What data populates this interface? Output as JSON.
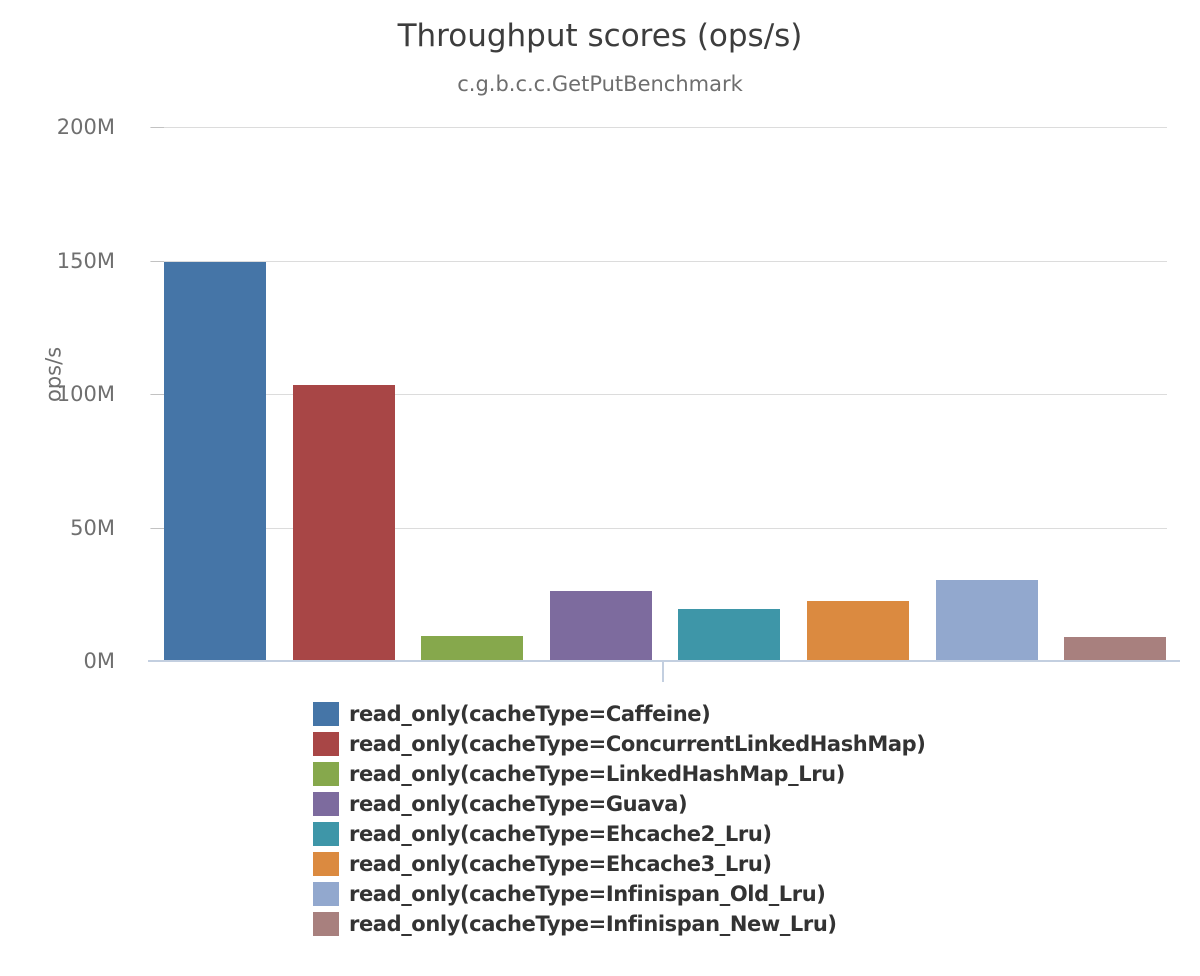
{
  "header": {
    "title": "Throughput scores (ops/s)",
    "subtitle": "c.g.b.c.c.GetPutBenchmark"
  },
  "y_axis": {
    "label": "ops/s",
    "tick_labels": [
      "200M",
      "150M",
      "100M",
      "50M",
      "0M"
    ]
  },
  "palette": {
    "gridline": "#dcdcdc",
    "tick_dash": "#c2c2c2",
    "axis_line": "#c3cfe0",
    "title_text": "#3d3d3d",
    "muted_text": "#6e6e6e",
    "legend_text": "#333333"
  },
  "chart_data": {
    "type": "bar",
    "title": "Throughput scores (ops/s)",
    "subtitle": "c.g.b.c.c.GetPutBenchmark",
    "xlabel": "",
    "ylabel": "ops/s",
    "ylim_millions": [
      0,
      200
    ],
    "y_tick_step_millions": 50,
    "grid": true,
    "legend_position": "bottom",
    "series": [
      {
        "name": "read_only(cacheType=Caffeine)",
        "value_millions": 149,
        "color": "#4575a7"
      },
      {
        "name": "read_only(cacheType=ConcurrentLinkedHashMap)",
        "value_millions": 103,
        "color": "#a84646"
      },
      {
        "name": "read_only(cacheType=LinkedHashMap_Lru)",
        "value_millions": 9,
        "color": "#86a84c"
      },
      {
        "name": "read_only(cacheType=Guava)",
        "value_millions": 26,
        "color": "#7d6b9e"
      },
      {
        "name": "read_only(cacheType=Ehcache2_Lru)",
        "value_millions": 19,
        "color": "#3e96a8"
      },
      {
        "name": "read_only(cacheType=Ehcache3_Lru)",
        "value_millions": 22,
        "color": "#db8a40"
      },
      {
        "name": "read_only(cacheType=Infinispan_Old_Lru)",
        "value_millions": 30,
        "color": "#92a8ce"
      },
      {
        "name": "read_only(cacheType=Infinispan_New_Lru)",
        "value_millions": 8.5,
        "color": "#a8807e"
      }
    ]
  }
}
